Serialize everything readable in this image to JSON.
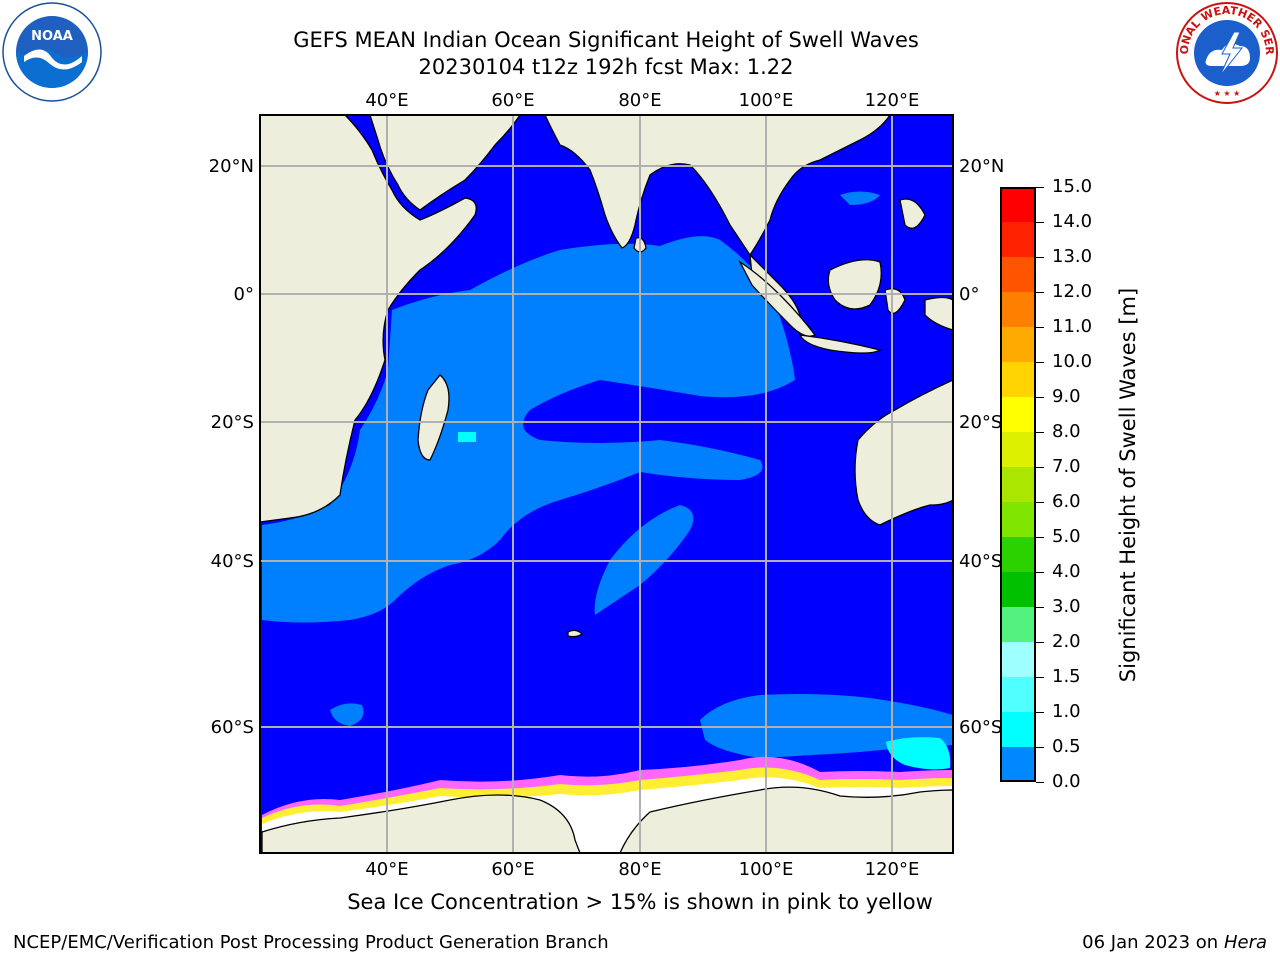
{
  "title": {
    "line1": "GEFS MEAN Indian Ocean Significant Height of Swell Waves",
    "line2": "20230104 t12z 192h fcst   Max: 1.22"
  },
  "map": {
    "lon_ticks": [
      "40°E",
      "60°E",
      "80°E",
      "100°E",
      "120°E"
    ],
    "lat_ticks": [
      "20°N",
      "0°",
      "20°S",
      "40°S",
      "60°S"
    ],
    "colors": {
      "ocean_deep": "#0000ff",
      "ocean_mid": "#007fff",
      "land": "#eeeedd",
      "ice": "#ffffff",
      "grid": "#b0b0b0"
    }
  },
  "colorbar": {
    "label": "Significant Height of Swell Waves [m]",
    "ticks": [
      "15.0",
      "14.0",
      "13.0",
      "12.0",
      "11.0",
      "10.0",
      "9.0",
      "8.0",
      "7.0",
      "6.0",
      "5.0",
      "4.0",
      "3.0",
      "2.0",
      "1.5",
      "1.0",
      "0.5",
      "0.0"
    ],
    "colors": [
      "#ff0000",
      "#ff2200",
      "#ff5500",
      "#ff8000",
      "#ffaa00",
      "#ffd400",
      "#ffff00",
      "#ddf000",
      "#aae600",
      "#80e600",
      "#2bd200",
      "#00c000",
      "#54f080",
      "#a0ffff",
      "#50ffff",
      "#00ffff",
      "#0088ff",
      "#0000ff"
    ]
  },
  "footnote": "Sea Ice Concentration > 15% is shown in pink to yellow",
  "credit": "NCEP/EMC/Verification Post Processing Product Generation Branch",
  "date": {
    "text": "06 Jan 2023 on ",
    "machine": "Hera"
  },
  "logos": {
    "left": "NOAA",
    "right": "NATIONAL WEATHER SERVICE"
  }
}
